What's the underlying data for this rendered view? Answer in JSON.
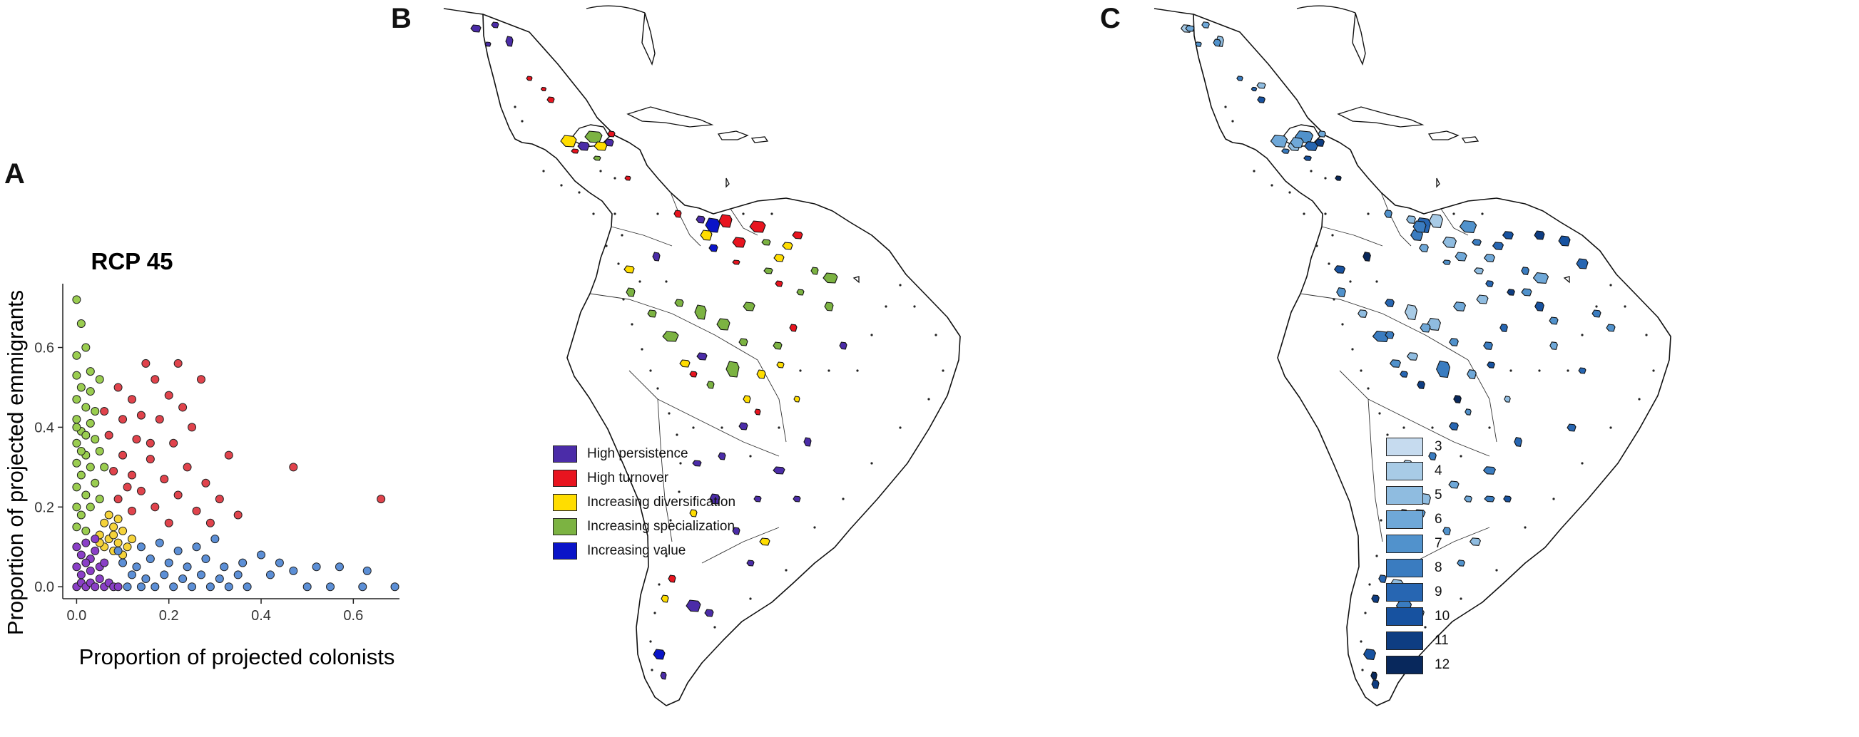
{
  "panels": {
    "a": "A",
    "b": "B",
    "c": "C"
  },
  "chart_data": [
    {
      "type": "scatter",
      "title": "RCP 45",
      "xlabel": "Proportion of projected colonists",
      "ylabel": "Proportion of projected emmigrants",
      "xlim": [
        -0.03,
        0.7
      ],
      "ylim": [
        -0.03,
        0.76
      ],
      "x_ticks": [
        "0.0",
        "0.2",
        "0.4",
        "0.6"
      ],
      "y_ticks": [
        "0.0",
        "0.2",
        "0.4",
        "0.6"
      ],
      "grid": false,
      "series": [
        {
          "color": "#9ACD50",
          "points": [
            [
              0.0,
              0.72
            ],
            [
              0.01,
              0.66
            ],
            [
              0.0,
              0.58
            ],
            [
              0.02,
              0.6
            ],
            [
              0.0,
              0.53
            ],
            [
              0.01,
              0.5
            ],
            [
              0.03,
              0.54
            ],
            [
              0.0,
              0.47
            ],
            [
              0.02,
              0.45
            ],
            [
              0.05,
              0.52
            ],
            [
              0.0,
              0.42
            ],
            [
              0.01,
              0.39
            ],
            [
              0.03,
              0.41
            ],
            [
              0.0,
              0.36
            ],
            [
              0.02,
              0.33
            ],
            [
              0.04,
              0.37
            ],
            [
              0.0,
              0.31
            ],
            [
              0.01,
              0.28
            ],
            [
              0.03,
              0.3
            ],
            [
              0.0,
              0.25
            ],
            [
              0.02,
              0.23
            ],
            [
              0.04,
              0.26
            ],
            [
              0.0,
              0.2
            ],
            [
              0.01,
              0.18
            ],
            [
              0.03,
              0.2
            ],
            [
              0.05,
              0.22
            ],
            [
              0.0,
              0.15
            ],
            [
              0.02,
              0.14
            ],
            [
              0.06,
              0.3
            ],
            [
              0.04,
              0.44
            ],
            [
              0.01,
              0.34
            ],
            [
              0.03,
              0.49
            ],
            [
              0.0,
              0.4
            ],
            [
              0.02,
              0.38
            ],
            [
              0.05,
              0.34
            ]
          ]
        },
        {
          "color": "#E0434C",
          "points": [
            [
              0.15,
              0.56
            ],
            [
              0.22,
              0.56
            ],
            [
              0.17,
              0.52
            ],
            [
              0.27,
              0.52
            ],
            [
              0.09,
              0.5
            ],
            [
              0.12,
              0.47
            ],
            [
              0.2,
              0.48
            ],
            [
              0.14,
              0.43
            ],
            [
              0.1,
              0.42
            ],
            [
              0.18,
              0.42
            ],
            [
              0.25,
              0.4
            ],
            [
              0.07,
              0.38
            ],
            [
              0.13,
              0.37
            ],
            [
              0.21,
              0.36
            ],
            [
              0.33,
              0.33
            ],
            [
              0.1,
              0.33
            ],
            [
              0.16,
              0.32
            ],
            [
              0.24,
              0.3
            ],
            [
              0.08,
              0.29
            ],
            [
              0.12,
              0.28
            ],
            [
              0.19,
              0.27
            ],
            [
              0.28,
              0.26
            ],
            [
              0.14,
              0.24
            ],
            [
              0.22,
              0.23
            ],
            [
              0.31,
              0.22
            ],
            [
              0.47,
              0.3
            ],
            [
              0.66,
              0.22
            ],
            [
              0.09,
              0.22
            ],
            [
              0.17,
              0.2
            ],
            [
              0.26,
              0.19
            ],
            [
              0.12,
              0.19
            ],
            [
              0.2,
              0.16
            ],
            [
              0.35,
              0.18
            ],
            [
              0.11,
              0.25
            ],
            [
              0.16,
              0.36
            ],
            [
              0.23,
              0.45
            ],
            [
              0.06,
              0.44
            ],
            [
              0.29,
              0.16
            ]
          ]
        },
        {
          "color": "#F5D33A",
          "points": [
            [
              0.06,
              0.16
            ],
            [
              0.08,
              0.15
            ],
            [
              0.07,
              0.12
            ],
            [
              0.09,
              0.11
            ],
            [
              0.05,
              0.13
            ],
            [
              0.1,
              0.14
            ],
            [
              0.08,
              0.09
            ],
            [
              0.06,
              0.1
            ],
            [
              0.11,
              0.1
            ],
            [
              0.07,
              0.18
            ],
            [
              0.09,
              0.17
            ],
            [
              0.12,
              0.12
            ],
            [
              0.05,
              0.11
            ],
            [
              0.08,
              0.13
            ],
            [
              0.1,
              0.08
            ]
          ]
        },
        {
          "color": "#5C8FD6",
          "points": [
            [
              0.1,
              0.06
            ],
            [
              0.13,
              0.05
            ],
            [
              0.16,
              0.07
            ],
            [
              0.2,
              0.06
            ],
            [
              0.24,
              0.05
            ],
            [
              0.28,
              0.07
            ],
            [
              0.32,
              0.05
            ],
            [
              0.36,
              0.06
            ],
            [
              0.4,
              0.08
            ],
            [
              0.44,
              0.06
            ],
            [
              0.12,
              0.03
            ],
            [
              0.15,
              0.02
            ],
            [
              0.19,
              0.03
            ],
            [
              0.23,
              0.02
            ],
            [
              0.27,
              0.03
            ],
            [
              0.31,
              0.02
            ],
            [
              0.35,
              0.03
            ],
            [
              0.09,
              0.09
            ],
            [
              0.14,
              0.1
            ],
            [
              0.18,
              0.11
            ],
            [
              0.22,
              0.09
            ],
            [
              0.26,
              0.1
            ],
            [
              0.3,
              0.12
            ],
            [
              0.11,
              0.0
            ],
            [
              0.14,
              0.0
            ],
            [
              0.17,
              0.0
            ],
            [
              0.21,
              0.0
            ],
            [
              0.25,
              0.0
            ],
            [
              0.29,
              0.0
            ],
            [
              0.33,
              0.0
            ],
            [
              0.37,
              0.0
            ],
            [
              0.5,
              0.0
            ],
            [
              0.55,
              0.0
            ],
            [
              0.62,
              0.0
            ],
            [
              0.69,
              0.0
            ],
            [
              0.57,
              0.05
            ],
            [
              0.63,
              0.04
            ],
            [
              0.52,
              0.05
            ],
            [
              0.47,
              0.04
            ],
            [
              0.42,
              0.03
            ]
          ]
        },
        {
          "color": "#8A3FC7",
          "points": [
            [
              0.0,
              0.1
            ],
            [
              0.01,
              0.08
            ],
            [
              0.02,
              0.11
            ],
            [
              0.03,
              0.07
            ],
            [
              0.04,
              0.09
            ],
            [
              0.0,
              0.05
            ],
            [
              0.01,
              0.03
            ],
            [
              0.02,
              0.06
            ],
            [
              0.03,
              0.04
            ],
            [
              0.05,
              0.05
            ],
            [
              0.0,
              0.0
            ],
            [
              0.01,
              0.01
            ],
            [
              0.02,
              0.0
            ],
            [
              0.03,
              0.01
            ],
            [
              0.04,
              0.0
            ],
            [
              0.05,
              0.02
            ],
            [
              0.06,
              0.0
            ],
            [
              0.07,
              0.01
            ],
            [
              0.08,
              0.0
            ],
            [
              0.09,
              0.0
            ],
            [
              0.06,
              0.06
            ],
            [
              0.04,
              0.12
            ]
          ]
        }
      ]
    }
  ],
  "legend_b": {
    "items": [
      {
        "label": "High persistence",
        "color": "#4B2CA8"
      },
      {
        "label": "High turnover",
        "color": "#E8141F"
      },
      {
        "label": "Increasing diversification",
        "color": "#FFDD00"
      },
      {
        "label": "Increasing specialization",
        "color": "#7CB342"
      },
      {
        "label": "Increasing value",
        "color": "#0A14C8"
      }
    ]
  },
  "legend_c": {
    "items": [
      {
        "label": "3",
        "color": "#C6DBEF"
      },
      {
        "label": "4",
        "color": "#A8CBE6"
      },
      {
        "label": "5",
        "color": "#8FBCE0"
      },
      {
        "label": "6",
        "color": "#6FA8D8"
      },
      {
        "label": "7",
        "color": "#5192CC"
      },
      {
        "label": "8",
        "color": "#3A7CC0"
      },
      {
        "label": "9",
        "color": "#2766B2"
      },
      {
        "label": "10",
        "color": "#1752A0"
      },
      {
        "label": "11",
        "color": "#0E3D82"
      },
      {
        "label": "12",
        "color": "#08285C"
      }
    ]
  }
}
